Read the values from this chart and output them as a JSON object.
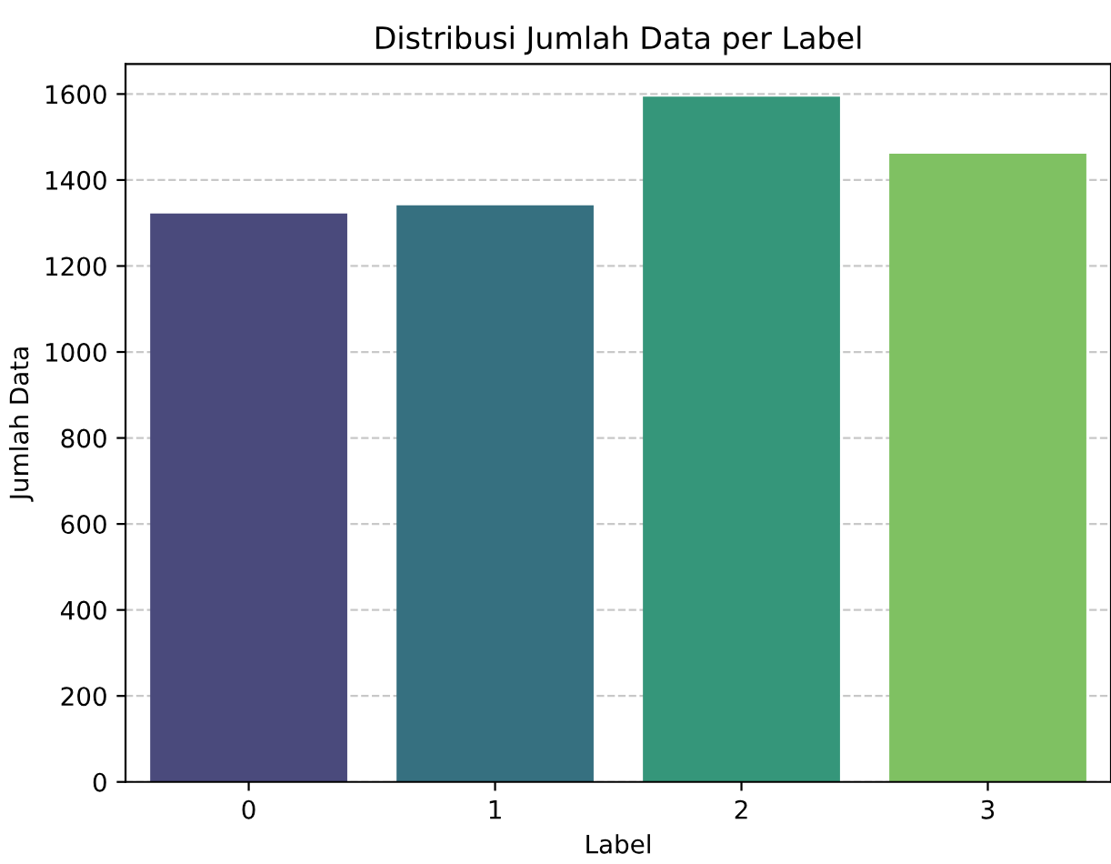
{
  "chart_data": {
    "type": "bar",
    "title": "Distribusi Jumlah Data per Label",
    "xlabel": "Label",
    "ylabel": "Jumlah Data",
    "categories": [
      "0",
      "1",
      "2",
      "3"
    ],
    "values": [
      1322,
      1341,
      1594,
      1461
    ],
    "colors": [
      "#4a4a7c",
      "#367080",
      "#35967a",
      "#7fc162"
    ],
    "ylim": [
      0,
      1670
    ],
    "yticks": [
      0,
      200,
      400,
      600,
      800,
      1000,
      1200,
      1400,
      1600
    ],
    "grid": "y",
    "line_style": "dashed"
  }
}
